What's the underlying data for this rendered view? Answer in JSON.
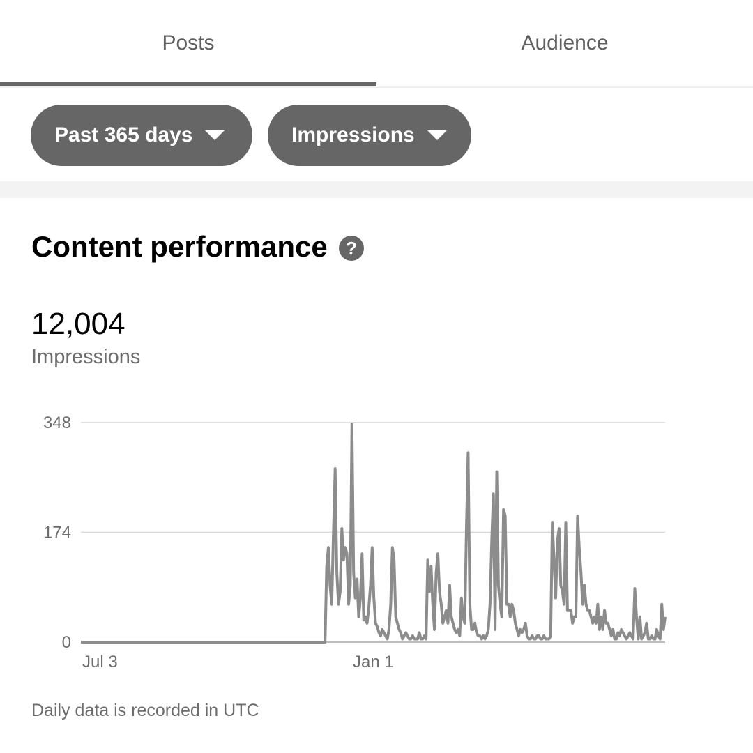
{
  "tabs": [
    {
      "label": "Posts",
      "active": true
    },
    {
      "label": "Audience",
      "active": false
    }
  ],
  "filters": {
    "range": "Past 365 days",
    "metric": "Impressions"
  },
  "section": {
    "title": "Content performance",
    "help_icon": "question-circle-icon",
    "help_glyph": "?"
  },
  "summary": {
    "value": "12,004",
    "label": "Impressions"
  },
  "chart_data": {
    "type": "line",
    "x_tick_labels": [
      "Jul 3",
      "Jan 1"
    ],
    "y_ticks": [
      "348",
      "174",
      "0"
    ],
    "ylim": [
      0,
      348
    ],
    "grid": true,
    "series": [
      {
        "values": [
          0,
          0,
          0,
          0,
          0,
          0,
          0,
          0,
          0,
          0,
          0,
          0,
          0,
          0,
          0,
          0,
          0,
          0,
          0,
          0,
          0,
          0,
          0,
          0,
          0,
          0,
          0,
          0,
          0,
          0,
          0,
          0,
          0,
          0,
          0,
          0,
          0,
          0,
          0,
          0,
          0,
          0,
          0,
          0,
          0,
          0,
          0,
          0,
          0,
          0,
          0,
          0,
          0,
          0,
          0,
          0,
          0,
          0,
          0,
          0,
          0,
          0,
          0,
          0,
          0,
          0,
          0,
          0,
          0,
          0,
          0,
          0,
          0,
          0,
          0,
          0,
          0,
          0,
          0,
          0,
          0,
          0,
          0,
          0,
          0,
          0,
          0,
          0,
          0,
          0,
          0,
          0,
          0,
          0,
          0,
          0,
          0,
          0,
          0,
          0,
          0,
          0,
          0,
          0,
          0,
          0,
          0,
          0,
          0,
          0,
          0,
          0,
          0,
          0,
          0,
          0,
          0,
          0,
          0,
          0,
          0,
          0,
          0,
          0,
          0,
          0,
          0,
          0,
          0,
          0,
          0,
          0,
          0,
          0,
          0,
          0,
          0,
          0,
          0,
          0,
          0,
          0,
          0,
          0,
          0,
          0,
          120,
          150,
          90,
          60,
          170,
          275,
          110,
          60,
          80,
          180,
          130,
          150,
          140,
          60,
          90,
          345,
          110,
          70,
          100,
          40,
          70,
          140,
          35,
          40,
          30,
          55,
          90,
          150,
          70,
          30,
          25,
          15,
          10,
          20,
          15,
          10,
          5,
          20,
          60,
          150,
          130,
          40,
          30,
          20,
          15,
          5,
          10,
          15,
          10,
          5,
          5,
          10,
          5,
          5,
          5,
          15,
          5,
          5,
          10,
          5,
          130,
          80,
          120,
          60,
          20,
          110,
          140,
          80,
          60,
          30,
          40,
          50,
          30,
          90,
          40,
          30,
          20,
          15,
          20,
          10,
          70,
          40,
          30,
          180,
          300,
          60,
          20,
          20,
          30,
          15,
          10,
          10,
          5,
          10,
          5,
          10,
          20,
          60,
          160,
          235,
          20,
          270,
          90,
          60,
          40,
          210,
          200,
          60,
          60,
          40,
          60,
          50,
          30,
          20,
          10,
          20,
          15,
          20,
          30,
          10,
          5,
          5,
          10,
          5,
          5,
          10,
          10,
          5,
          5,
          10,
          5,
          5,
          5,
          10,
          190,
          130,
          70,
          160,
          180,
          90,
          80,
          60,
          190,
          50,
          50,
          50,
          30,
          40,
          40,
          200,
          150,
          110,
          60,
          90,
          60,
          50,
          50,
          40,
          30,
          40,
          30,
          60,
          20,
          40,
          20,
          50,
          30,
          30,
          20,
          10,
          20,
          5,
          5,
          15,
          10,
          20,
          15,
          10,
          5,
          10,
          15,
          10,
          5,
          85,
          40,
          5,
          40,
          5,
          10,
          15,
          30,
          5,
          5,
          10,
          5,
          5,
          20,
          10,
          5,
          60,
          20,
          40
        ]
      }
    ]
  },
  "footnote": "Daily data is recorded in UTC"
}
